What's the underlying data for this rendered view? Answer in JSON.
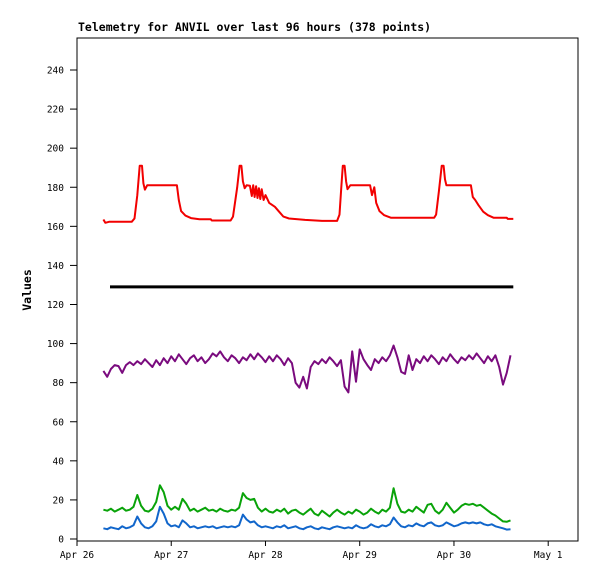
{
  "chart_data": {
    "type": "line",
    "title": "Telemetry for ANVIL over last 96 hours (378 points)",
    "ylabel": "Values",
    "xlabel": "",
    "legend": "none",
    "grid": false,
    "background_color": "#ffffff",
    "frame_color": "#000000",
    "x_domain_days": [
      0,
      5.317
    ],
    "ylim": [
      0,
      256
    ],
    "y_ticks": [
      0,
      20,
      40,
      60,
      80,
      100,
      120,
      140,
      160,
      180,
      200,
      220,
      240
    ],
    "x_ticks": [
      {
        "day": 0,
        "label": "Apr 26"
      },
      {
        "day": 1,
        "label": "Apr 27"
      },
      {
        "day": 2,
        "label": "Apr 28"
      },
      {
        "day": 3,
        "label": "Apr 29"
      },
      {
        "day": 4,
        "label": "Apr 30"
      },
      {
        "day": 5,
        "label": "May 1"
      }
    ],
    "series": [
      {
        "name": "red-daily-cycle",
        "color": "#f20000",
        "width": 2,
        "points": [
          [
            0.28,
            163.5
          ],
          [
            0.3,
            161.8
          ],
          [
            0.34,
            162.3
          ],
          [
            0.58,
            162.3
          ],
          [
            0.61,
            164
          ],
          [
            0.64,
            176
          ],
          [
            0.665,
            191
          ],
          [
            0.69,
            191
          ],
          [
            0.705,
            182
          ],
          [
            0.72,
            178.8
          ],
          [
            0.745,
            181
          ],
          [
            1.06,
            181
          ],
          [
            1.08,
            173.5
          ],
          [
            1.105,
            167.8
          ],
          [
            1.15,
            165.5
          ],
          [
            1.21,
            164.2
          ],
          [
            1.3,
            163.6
          ],
          [
            1.42,
            163.6
          ],
          [
            1.43,
            163
          ],
          [
            1.63,
            163
          ],
          [
            1.655,
            165
          ],
          [
            1.7,
            180
          ],
          [
            1.725,
            191
          ],
          [
            1.745,
            191
          ],
          [
            1.76,
            183
          ],
          [
            1.78,
            179.5
          ],
          [
            1.8,
            181
          ],
          [
            1.835,
            180.8
          ],
          [
            1.855,
            175.5
          ],
          [
            1.87,
            181
          ],
          [
            1.885,
            175
          ],
          [
            1.9,
            180.5
          ],
          [
            1.915,
            174.5
          ],
          [
            1.93,
            179.5
          ],
          [
            1.945,
            174
          ],
          [
            1.96,
            179
          ],
          [
            1.98,
            173.5
          ],
          [
            2.0,
            176
          ],
          [
            2.04,
            172
          ],
          [
            2.1,
            170
          ],
          [
            2.145,
            167.5
          ],
          [
            2.19,
            165
          ],
          [
            2.25,
            164
          ],
          [
            2.42,
            163.3
          ],
          [
            2.6,
            162.8
          ],
          [
            2.76,
            162.8
          ],
          [
            2.785,
            166
          ],
          [
            2.805,
            180
          ],
          [
            2.82,
            191
          ],
          [
            2.84,
            191
          ],
          [
            2.855,
            183
          ],
          [
            2.87,
            179
          ],
          [
            2.9,
            181
          ],
          [
            3.11,
            181
          ],
          [
            3.13,
            176
          ],
          [
            3.155,
            180
          ],
          [
            3.175,
            172
          ],
          [
            3.21,
            167.8
          ],
          [
            3.26,
            165.7
          ],
          [
            3.33,
            164.4
          ],
          [
            3.79,
            164.4
          ],
          [
            3.81,
            166
          ],
          [
            3.84,
            178
          ],
          [
            3.87,
            191
          ],
          [
            3.89,
            191
          ],
          [
            3.905,
            184
          ],
          [
            3.92,
            181
          ],
          [
            3.95,
            181
          ],
          [
            4.18,
            181
          ],
          [
            4.2,
            175
          ],
          [
            4.225,
            173.5
          ],
          [
            4.26,
            170.8
          ],
          [
            4.31,
            167.5
          ],
          [
            4.36,
            165.7
          ],
          [
            4.42,
            164.4
          ],
          [
            4.56,
            164.4
          ],
          [
            4.57,
            163.8
          ],
          [
            4.63,
            163.8
          ]
        ]
      },
      {
        "name": "black-threshold",
        "color": "#000000",
        "width": 3,
        "points": [
          [
            0.35,
            129
          ],
          [
            4.63,
            129
          ]
        ]
      },
      {
        "name": "purple-noisy",
        "color": "#7a0b7e",
        "width": 2,
        "t0": 0.28,
        "dt": 0.04,
        "values": [
          86,
          83,
          87,
          89,
          88.5,
          85,
          89,
          90.5,
          89,
          91,
          89.5,
          92,
          90,
          88,
          91.5,
          89,
          92.5,
          90,
          93.5,
          91,
          94.5,
          92,
          89.5,
          92.5,
          94,
          91,
          93,
          90,
          92,
          95,
          93.5,
          96,
          93,
          91,
          94,
          92.5,
          90,
          93,
          91.5,
          94.5,
          92,
          95,
          93,
          90.5,
          93.5,
          91,
          94,
          92,
          89,
          92.5,
          90,
          80,
          77.5,
          83,
          77,
          88,
          91,
          89.5,
          92,
          90,
          93,
          91,
          88.5,
          91.5,
          78,
          75,
          96,
          80.5,
          97,
          92,
          89,
          86.5,
          92,
          90,
          93,
          91,
          94,
          99,
          93,
          85.5,
          84.5,
          94,
          86.5,
          92,
          90,
          93.5,
          91,
          94,
          92,
          89.5,
          93,
          91,
          94.5,
          92,
          90,
          93,
          91.5,
          94,
          92,
          95,
          92.5,
          90,
          93.5,
          91,
          94,
          88,
          79,
          85,
          94
        ]
      },
      {
        "name": "green-noisy",
        "color": "#09a309",
        "width": 2,
        "t0": 0.28,
        "dt": 0.04,
        "values": [
          15,
          14.5,
          15.5,
          14,
          15,
          16,
          14.5,
          15,
          16.5,
          22.5,
          17,
          14.5,
          14,
          15.5,
          19,
          27.5,
          24,
          17,
          15,
          16.5,
          15,
          20.5,
          18,
          14.5,
          15.5,
          14,
          15,
          16,
          14.5,
          15,
          14,
          15.5,
          14.5,
          14,
          15,
          14.5,
          16,
          23.5,
          21,
          20,
          20.5,
          16,
          14,
          15.5,
          14,
          13.5,
          15,
          14,
          15.5,
          13,
          14.5,
          15,
          13.5,
          12.5,
          14,
          15.5,
          13,
          12,
          14.5,
          13,
          11.5,
          13.5,
          15,
          13.5,
          12.5,
          14,
          13,
          15,
          14,
          12.5,
          13.5,
          15.5,
          14,
          13,
          15,
          14,
          16,
          26,
          18,
          14,
          13.5,
          15,
          14,
          16.5,
          15,
          13.5,
          17.5,
          18,
          14.5,
          13,
          15,
          18.5,
          16,
          13.5,
          15,
          17,
          18,
          17.5,
          18,
          17,
          17.5,
          16,
          14.5,
          13,
          12,
          10.5,
          9,
          8.8,
          9.5
        ]
      },
      {
        "name": "blue-noisy",
        "color": "#1166cb",
        "width": 2,
        "t0": 0.28,
        "dt": 0.04,
        "values": [
          5.5,
          5,
          6,
          5.5,
          5,
          6.5,
          5.5,
          6,
          7,
          11.5,
          8,
          6,
          5.5,
          6.5,
          9,
          16.5,
          13,
          8,
          6.5,
          7,
          6,
          9.5,
          8,
          6,
          6.5,
          5.5,
          6,
          6.5,
          6,
          6.5,
          5.5,
          6,
          6.5,
          6,
          6.5,
          6,
          7,
          12.5,
          10,
          8.5,
          9,
          7,
          6,
          6.5,
          6,
          5.5,
          6.5,
          6,
          7,
          5.5,
          6,
          6.5,
          5.5,
          5,
          6,
          6.5,
          5.5,
          5,
          6,
          5.5,
          5,
          6,
          6.5,
          6,
          5.5,
          6,
          5.5,
          7,
          6,
          5.5,
          6,
          7.5,
          6.5,
          6,
          7,
          6.5,
          7.5,
          11,
          8.5,
          6.5,
          6,
          7,
          6.5,
          8,
          7,
          6.5,
          8,
          8.5,
          7,
          6.5,
          7,
          8.5,
          7.5,
          6.5,
          7,
          8,
          8.5,
          8,
          8.5,
          8,
          8.5,
          7.5,
          7,
          7.5,
          6.5,
          6,
          5.5,
          4.8,
          5
        ]
      }
    ]
  }
}
